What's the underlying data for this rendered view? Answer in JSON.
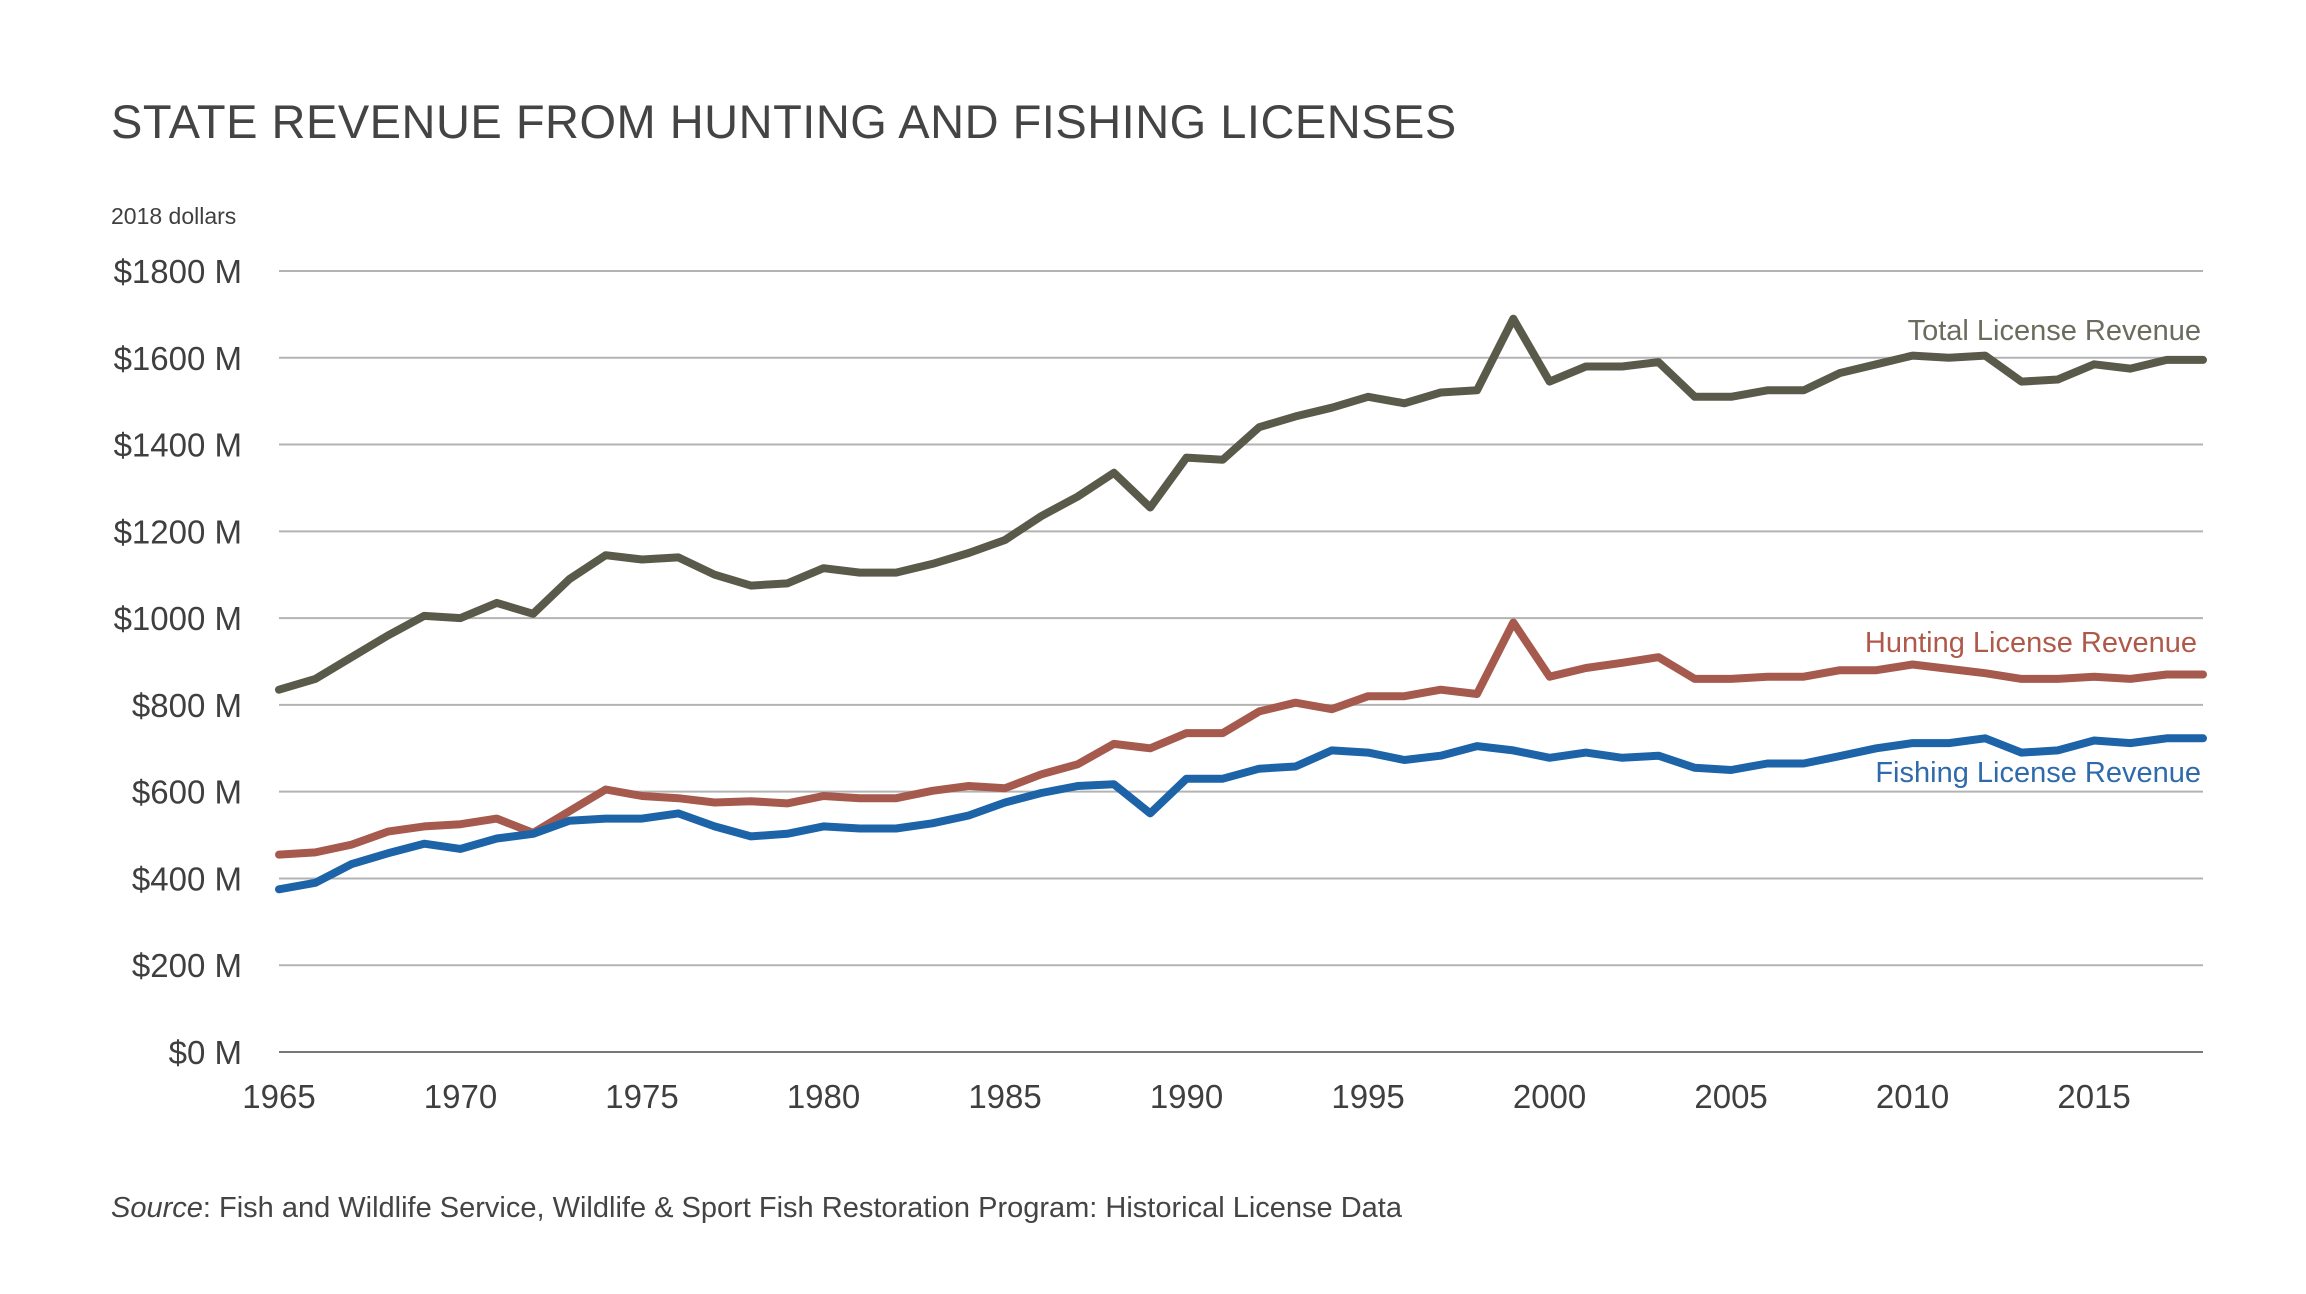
{
  "chart_data": {
    "type": "line",
    "title": "STATE REVENUE FROM HUNTING AND FISHING LICENSES",
    "unit_label": "2018 dollars",
    "source_prefix": "Source",
    "source_text": ": Fish and Wildlife Service, Wildlife & Sport Fish Restoration Program: Historical License Data",
    "xlim": [
      1965,
      2018
    ],
    "ylim": [
      0,
      1800
    ],
    "x_ticks": [
      1965,
      1970,
      1975,
      1980,
      1985,
      1990,
      1995,
      2000,
      2005,
      2010,
      2015
    ],
    "y_ticks": [
      {
        "value": 0,
        "label": "$0 M"
      },
      {
        "value": 200,
        "label": "$200 M"
      },
      {
        "value": 400,
        "label": "$400 M"
      },
      {
        "value": 600,
        "label": "$600 M"
      },
      {
        "value": 800,
        "label": "$800 M"
      },
      {
        "value": 1000,
        "label": "$1000 M"
      },
      {
        "value": 1200,
        "label": "$1200 M"
      },
      {
        "value": 1400,
        "label": "$1400 M"
      },
      {
        "value": 1600,
        "label": "$1600 M"
      },
      {
        "value": 1800,
        "label": "$1800 M"
      }
    ],
    "grid": true,
    "x": [
      1965,
      1966,
      1967,
      1968,
      1969,
      1970,
      1971,
      1972,
      1973,
      1974,
      1975,
      1976,
      1977,
      1978,
      1979,
      1980,
      1981,
      1982,
      1983,
      1984,
      1985,
      1986,
      1987,
      1988,
      1989,
      1990,
      1991,
      1992,
      1993,
      1994,
      1995,
      1996,
      1997,
      1998,
      1999,
      2000,
      2001,
      2002,
      2003,
      2004,
      2005,
      2006,
      2007,
      2008,
      2009,
      2010,
      2011,
      2012,
      2013,
      2014,
      2015,
      2016,
      2017,
      2018
    ],
    "series": [
      {
        "name": "Total License Revenue",
        "color": "#5a5a4a",
        "label_color": "#6b6b5e",
        "values": [
          835,
          860,
          910,
          960,
          1005,
          1000,
          1035,
          1010,
          1090,
          1145,
          1135,
          1140,
          1100,
          1075,
          1080,
          1115,
          1105,
          1105,
          1125,
          1150,
          1180,
          1235,
          1280,
          1335,
          1255,
          1370,
          1365,
          1440,
          1465,
          1485,
          1510,
          1495,
          1520,
          1525,
          1690,
          1545,
          1580,
          1580,
          1590,
          1510,
          1510,
          1525,
          1525,
          1565,
          1585,
          1605,
          1600,
          1605,
          1545,
          1550,
          1585,
          1575,
          1595,
          1595
        ]
      },
      {
        "name": "Hunting License Revenue",
        "color": "#a65a4d",
        "label_color": "#b0594a",
        "values": [
          455,
          460,
          478,
          508,
          520,
          525,
          538,
          505,
          555,
          605,
          590,
          585,
          575,
          578,
          573,
          590,
          585,
          585,
          602,
          613,
          608,
          640,
          663,
          710,
          700,
          735,
          735,
          785,
          805,
          790,
          820,
          820,
          835,
          825,
          990,
          865,
          885,
          897,
          910,
          860,
          860,
          865,
          865,
          880,
          880,
          893,
          883,
          873,
          860,
          860,
          865,
          860,
          870,
          870
        ]
      },
      {
        "name": "Fishing License Revenue",
        "color": "#1d63a8",
        "label_color": "#2e6aac",
        "values": [
          375,
          390,
          433,
          458,
          480,
          468,
          492,
          503,
          533,
          538,
          538,
          550,
          520,
          497,
          503,
          520,
          515,
          515,
          527,
          545,
          575,
          597,
          613,
          617,
          550,
          630,
          630,
          653,
          658,
          695,
          690,
          673,
          683,
          705,
          695,
          678,
          690,
          678,
          683,
          655,
          650,
          665,
          665,
          682,
          700,
          712,
          712,
          723,
          690,
          695,
          718,
          712,
          723,
          723
        ]
      }
    ]
  }
}
